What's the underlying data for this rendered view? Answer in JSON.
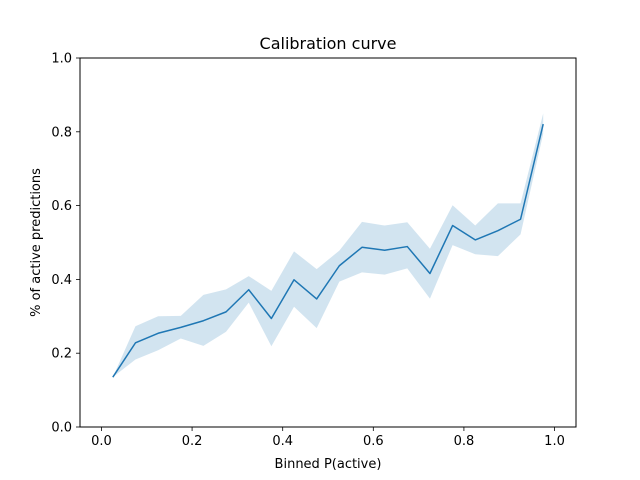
{
  "chart_data": {
    "type": "line",
    "title": "Calibration curve",
    "xlabel": "Binned P(active)",
    "ylabel": "% of active predictions",
    "xlim": [
      -0.0,
      1.0
    ],
    "ylim": [
      0.0,
      1.0
    ],
    "xticks": [
      "0.0",
      "0.2",
      "0.4",
      "0.6",
      "0.8",
      "1.0"
    ],
    "yticks": [
      "0.0",
      "0.2",
      "0.4",
      "0.6",
      "0.8",
      "1.0"
    ],
    "xtick_values": [
      0.0,
      0.2,
      0.4,
      0.6,
      0.8,
      1.0
    ],
    "ytick_values": [
      0.0,
      0.2,
      0.4,
      0.6,
      0.8,
      1.0
    ],
    "grid": false,
    "colors": {
      "line": "#1f77b4",
      "band": "#1f77b4"
    },
    "series": [
      {
        "x": [
          0.025,
          0.075,
          0.125,
          0.175,
          0.225,
          0.275,
          0.325,
          0.375,
          0.425,
          0.475,
          0.525,
          0.575,
          0.625,
          0.675,
          0.725,
          0.775,
          0.825,
          0.875,
          0.925,
          0.975
        ],
        "y": [
          0.135,
          0.228,
          0.254,
          0.27,
          0.288,
          0.312,
          0.372,
          0.294,
          0.399,
          0.347,
          0.437,
          0.487,
          0.479,
          0.489,
          0.416,
          0.546,
          0.507,
          0.532,
          0.563,
          0.821
        ],
        "lower": [
          0.135,
          0.183,
          0.208,
          0.24,
          0.22,
          0.258,
          0.337,
          0.219,
          0.326,
          0.268,
          0.394,
          0.419,
          0.413,
          0.43,
          0.348,
          0.493,
          0.468,
          0.463,
          0.522,
          0.795
        ],
        "upper": [
          0.135,
          0.273,
          0.3,
          0.301,
          0.358,
          0.373,
          0.409,
          0.369,
          0.476,
          0.428,
          0.478,
          0.556,
          0.546,
          0.555,
          0.483,
          0.601,
          0.546,
          0.606,
          0.606,
          0.85
        ]
      }
    ]
  }
}
